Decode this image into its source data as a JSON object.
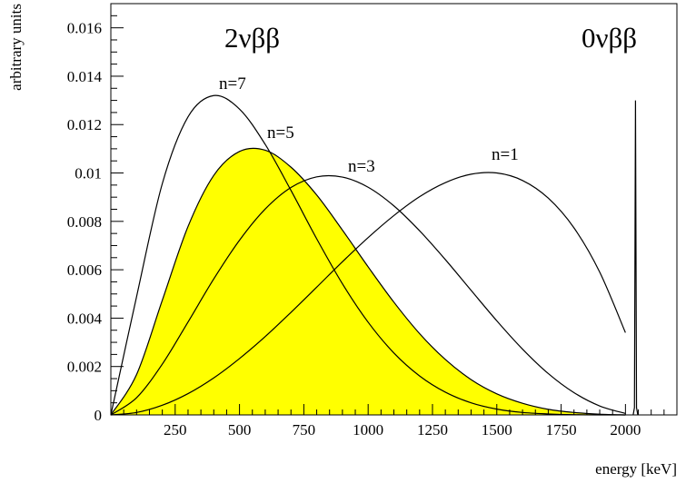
{
  "chart_data": {
    "type": "line",
    "xlabel": "energy [keV]",
    "ylabel": "arbitrary units",
    "xlim": [
      0,
      2200
    ],
    "ylim": [
      0,
      0.017
    ],
    "x_ticks": [
      "250",
      "500",
      "750",
      "1000",
      "1250",
      "1500",
      "1750",
      "2000"
    ],
    "y_ticks": [
      "0",
      "0.002",
      "0.004",
      "0.006",
      "0.008",
      "0.01",
      "0.012",
      "0.014",
      "0.016"
    ],
    "annotations": [
      "2νββ",
      "0νββ"
    ],
    "series": [
      {
        "name": "n=7",
        "fill": false,
        "x": [
          0,
          100,
          200,
          300,
          400,
          500,
          600,
          700,
          800,
          900,
          1000,
          1100,
          1200,
          1300,
          1400,
          1500,
          1600,
          1700,
          1800,
          1900,
          2000
        ],
        "y": [
          0,
          0.00489,
          0.00956,
          0.01232,
          0.0132,
          0.01264,
          0.01118,
          0.00928,
          0.00728,
          0.00542,
          0.00383,
          0.00256,
          0.00161,
          0.00094,
          0.0005,
          0.00024,
          0.0001,
          4e-05,
          1e-05,
          0,
          0
        ]
      },
      {
        "name": "n=5",
        "fill": true,
        "x": [
          0,
          100,
          200,
          300,
          400,
          500,
          600,
          700,
          800,
          900,
          1000,
          1100,
          1200,
          1300,
          1400,
          1500,
          1600,
          1700,
          1800,
          1900,
          2000
        ],
        "y": [
          0,
          0.00167,
          0.00474,
          0.00779,
          0.0099,
          0.01089,
          0.01094,
          0.01024,
          0.00909,
          0.00764,
          0.00612,
          0.00466,
          0.00336,
          0.00229,
          0.00146,
          0.00087,
          0.00048,
          0.00023,
          0.0001,
          3e-05,
          0
        ]
      },
      {
        "name": "n=3",
        "fill": false,
        "x": [
          0,
          100,
          200,
          300,
          400,
          500,
          600,
          700,
          800,
          900,
          1000,
          1100,
          1200,
          1300,
          1400,
          1500,
          1600,
          1700,
          1800,
          1900,
          2000
        ],
        "y": [
          0,
          0.00071,
          0.0021,
          0.00384,
          0.00562,
          0.00722,
          0.00851,
          0.0094,
          0.00984,
          0.00983,
          0.00941,
          0.00864,
          0.00761,
          0.00642,
          0.00515,
          0.00389,
          0.00272,
          0.00171,
          0.00092,
          0.00037,
          6e-05
        ]
      },
      {
        "name": "n=1",
        "fill": false,
        "x": [
          0,
          100,
          200,
          300,
          400,
          500,
          600,
          700,
          800,
          900,
          1000,
          1100,
          1200,
          1300,
          1400,
          1500,
          1600,
          1700,
          1800,
          1900,
          2000
        ],
        "y": [
          0,
          0.0001,
          0.0004,
          0.00088,
          0.00153,
          0.00233,
          0.00324,
          0.00424,
          0.00528,
          0.00633,
          0.00733,
          0.00824,
          0.00902,
          0.0096,
          0.00995,
          0.01,
          0.00969,
          0.00896,
          0.00773,
          0.0059,
          0.0034
        ]
      },
      {
        "name": "0νββ peak",
        "fill": false,
        "x": [
          2030,
          2035,
          2039,
          2043,
          2048
        ],
        "y": [
          0,
          0.0003,
          0.013,
          0.0003,
          0
        ]
      }
    ]
  }
}
